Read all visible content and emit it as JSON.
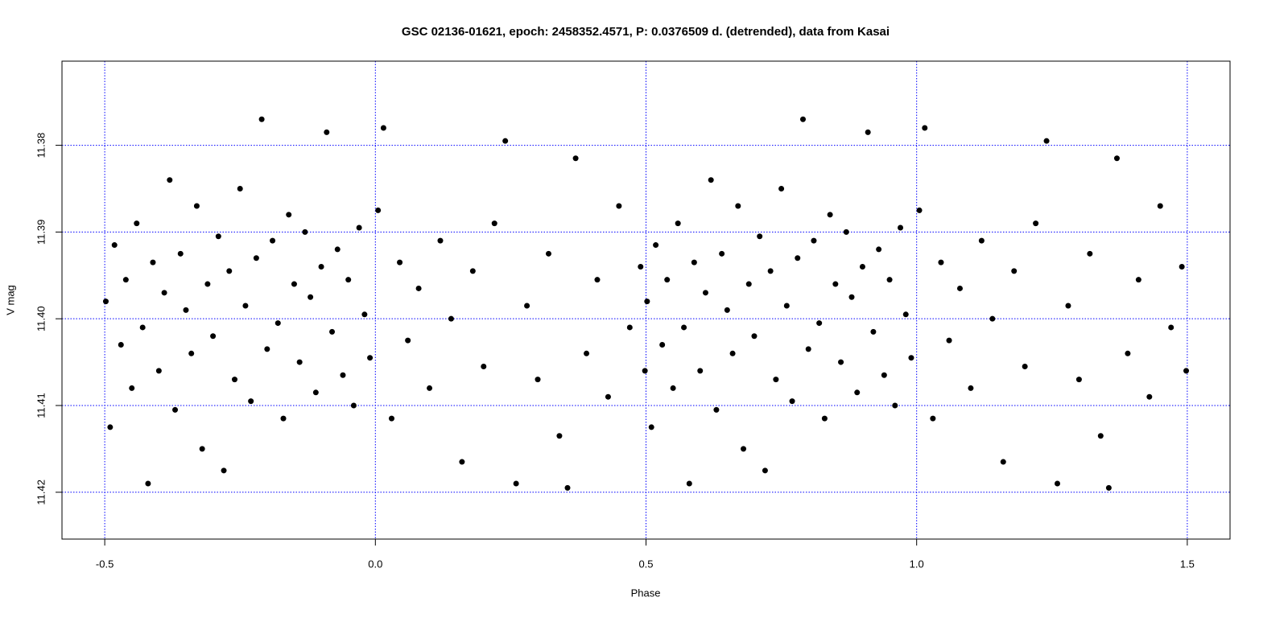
{
  "chart_data": {
    "type": "scatter",
    "title": "GSC 02136-01621, epoch: 2458352.4571, P: 0.0376509 d. (detrended), data from Kasai",
    "x_label": "Phase",
    "y_label": "V mag",
    "color": "#000000",
    "grid_color": "#0000ff",
    "grid": true,
    "xlim": [
      -0.579,
      1.579
    ],
    "ylim": [
      11.4254,
      11.3703
    ],
    "xticks": [
      -0.5,
      {
        "value": 0,
        "label": "0.0"
      },
      0.5,
      {
        "value": 1,
        "label": "1.0"
      },
      1.5
    ],
    "yticks": [
      11.38,
      11.39,
      {
        "value": 11.4,
        "label": "11.40"
      },
      11.41,
      11.42
    ],
    "x": [
      -0.498,
      -0.49,
      -0.482,
      -0.47,
      -0.461,
      -0.45,
      -0.441,
      -0.43,
      -0.42,
      -0.411,
      -0.4,
      -0.39,
      -0.38,
      -0.37,
      -0.36,
      -0.35,
      -0.34,
      -0.33,
      -0.32,
      -0.31,
      -0.3,
      -0.29,
      -0.28,
      -0.27,
      -0.26,
      -0.25,
      -0.24,
      -0.23,
      -0.22,
      -0.21,
      -0.2,
      -0.19,
      -0.18,
      -0.17,
      -0.16,
      -0.15,
      -0.14,
      -0.13,
      -0.12,
      -0.11,
      -0.1,
      -0.09,
      -0.08,
      -0.07,
      -0.06,
      -0.05,
      -0.04,
      -0.03,
      -0.02,
      -0.01,
      0.005,
      0.015,
      0.03,
      0.045,
      0.06,
      0.08,
      0.1,
      0.12,
      0.14,
      0.16,
      0.18,
      0.2,
      0.22,
      0.24,
      0.26,
      0.28,
      0.3,
      0.32,
      0.34,
      0.355,
      0.37,
      0.39,
      0.41,
      0.43,
      0.45,
      0.47,
      0.49,
      0.498,
      0.502,
      0.51,
      0.518,
      0.53,
      0.539,
      0.55,
      0.559,
      0.57,
      0.58,
      0.589,
      0.6,
      0.61,
      0.62,
      0.63,
      0.64,
      0.65,
      0.66,
      0.67,
      0.68,
      0.69,
      0.7,
      0.71,
      0.72,
      0.73,
      0.74,
      0.75,
      0.76,
      0.77,
      0.78,
      0.79,
      0.8,
      0.81,
      0.82,
      0.83,
      0.84,
      0.85,
      0.86,
      0.87,
      0.88,
      0.89,
      0.9,
      0.91,
      0.92,
      0.93,
      0.94,
      0.95,
      0.96,
      0.97,
      0.98,
      0.99,
      1.005,
      1.015,
      1.03,
      1.045,
      1.06,
      1.08,
      1.1,
      1.12,
      1.14,
      1.16,
      1.18,
      1.2,
      1.22,
      1.24,
      1.26,
      1.28,
      1.3,
      1.32,
      1.34,
      1.355,
      1.37,
      1.39,
      1.41,
      1.43,
      1.45,
      1.47,
      1.49,
      1.498
    ],
    "values": [
      11.398,
      11.4125,
      11.3915,
      11.403,
      11.3955,
      11.408,
      11.389,
      11.401,
      11.419,
      11.3935,
      11.406,
      11.397,
      11.384,
      11.4105,
      11.3925,
      11.399,
      11.404,
      11.387,
      11.415,
      11.396,
      11.402,
      11.3905,
      11.4175,
      11.3945,
      11.407,
      11.385,
      11.3985,
      11.4095,
      11.393,
      11.377,
      11.4035,
      11.391,
      11.4005,
      11.4115,
      11.388,
      11.396,
      11.405,
      11.39,
      11.3975,
      11.4085,
      11.394,
      11.3785,
      11.4015,
      11.392,
      11.4065,
      11.3955,
      11.41,
      11.3895,
      11.3995,
      11.4045,
      11.3875,
      11.378,
      11.4115,
      11.3935,
      11.4025,
      11.3965,
      11.408,
      11.391,
      11.4,
      11.4165,
      11.3945,
      11.4055,
      11.389,
      11.3795,
      11.419,
      11.3985,
      11.407,
      11.3925,
      11.4135,
      11.4195,
      11.3815,
      11.404,
      11.3955,
      11.409,
      11.387,
      11.401,
      11.394,
      11.406,
      11.398,
      11.4125,
      11.3915,
      11.403,
      11.3955,
      11.408,
      11.389,
      11.401,
      11.419,
      11.3935,
      11.406,
      11.397,
      11.384,
      11.4105,
      11.3925,
      11.399,
      11.404,
      11.387,
      11.415,
      11.396,
      11.402,
      11.3905,
      11.4175,
      11.3945,
      11.407,
      11.385,
      11.3985,
      11.4095,
      11.393,
      11.377,
      11.4035,
      11.391,
      11.4005,
      11.4115,
      11.388,
      11.396,
      11.405,
      11.39,
      11.3975,
      11.4085,
      11.394,
      11.3785,
      11.4015,
      11.392,
      11.4065,
      11.3955,
      11.41,
      11.3895,
      11.3995,
      11.4045,
      11.3875,
      11.378,
      11.4115,
      11.3935,
      11.4025,
      11.3965,
      11.408,
      11.391,
      11.4,
      11.4165,
      11.3945,
      11.4055,
      11.389,
      11.3795,
      11.419,
      11.3985,
      11.407,
      11.3925,
      11.4135,
      11.4195,
      11.3815,
      11.404,
      11.3955,
      11.409,
      11.387,
      11.401,
      11.394,
      11.406
    ]
  }
}
